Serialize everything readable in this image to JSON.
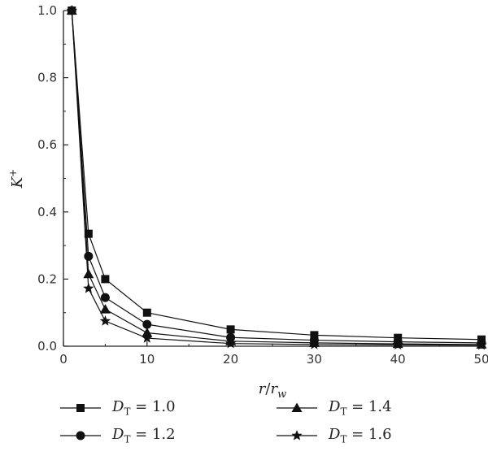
{
  "chart_data": {
    "type": "line",
    "xlabel": {
      "main": "r",
      "sep": "/",
      "main2": "r",
      "sub": "w"
    },
    "ylabel": {
      "main": "K",
      "sup": "+"
    },
    "xlim": [
      0,
      50
    ],
    "ylim": [
      0,
      1.0
    ],
    "xticks": [
      0,
      10,
      20,
      30,
      40,
      50
    ],
    "yticks": [
      0.0,
      0.2,
      0.4,
      0.6,
      0.8,
      1.0
    ],
    "xtick_labels": [
      "0",
      "10",
      "20",
      "30",
      "40",
      "50"
    ],
    "ytick_labels": [
      "0.0",
      "0.2",
      "0.4",
      "0.6",
      "0.8",
      "1.0"
    ],
    "grid": false,
    "legend_position": "bottom",
    "series": [
      {
        "name": "D_T = 1.0",
        "label_var": "D",
        "label_sub": "T",
        "label_rest": " = 1.0",
        "marker": "square",
        "x": [
          1,
          3,
          5,
          10,
          20,
          30,
          40,
          50
        ],
        "y": [
          1.0,
          0.335,
          0.2,
          0.1,
          0.05,
          0.033,
          0.025,
          0.02
        ]
      },
      {
        "name": "D_T = 1.2",
        "label_var": "D",
        "label_sub": "T",
        "label_rest": " = 1.2",
        "marker": "circle",
        "x": [
          1,
          3,
          5,
          10,
          20,
          30,
          40,
          50
        ],
        "y": [
          1.0,
          0.268,
          0.145,
          0.065,
          0.026,
          0.018,
          0.013,
          0.01
        ]
      },
      {
        "name": "D_T = 1.4",
        "label_var": "D",
        "label_sub": "T",
        "label_rest": " = 1.4",
        "marker": "triangle",
        "x": [
          1,
          3,
          5,
          10,
          20,
          30,
          40,
          50
        ],
        "y": [
          1.0,
          0.215,
          0.11,
          0.04,
          0.015,
          0.01,
          0.007,
          0.005
        ]
      },
      {
        "name": "D_T = 1.6",
        "label_var": "D",
        "label_sub": "T",
        "label_rest": " = 1.6",
        "marker": "star",
        "x": [
          1,
          3,
          5,
          10,
          20,
          30,
          40,
          50
        ],
        "y": [
          1.0,
          0.172,
          0.075,
          0.024,
          0.008,
          0.005,
          0.004,
          0.003
        ]
      }
    ]
  }
}
